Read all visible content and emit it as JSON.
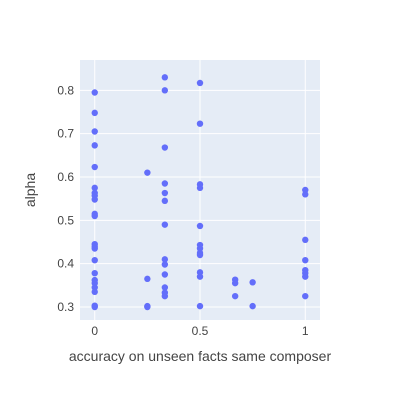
{
  "chart_data": {
    "type": "scatter",
    "xlabel": "accuracy on unseen facts same composer",
    "ylabel": "alpha",
    "xlim": [
      -0.07,
      1.07
    ],
    "ylim": [
      0.27,
      0.87
    ],
    "x_ticks": [
      0,
      0.5,
      1
    ],
    "x_tick_labels": [
      "0",
      "0.5",
      "1"
    ],
    "y_ticks": [
      0.3,
      0.4,
      0.5,
      0.6,
      0.7,
      0.8
    ],
    "y_tick_labels": [
      "0.3",
      "0.4",
      "0.5",
      "0.6",
      "0.7",
      "0.8"
    ],
    "grid": true,
    "colors": {
      "plot_background": "#e5ecf6",
      "grid": "#ffffff",
      "marker": "#636efa"
    },
    "points": [
      {
        "x": 0,
        "y": 0.795
      },
      {
        "x": 0,
        "y": 0.748
      },
      {
        "x": 0,
        "y": 0.705
      },
      {
        "x": 0,
        "y": 0.673
      },
      {
        "x": 0,
        "y": 0.623
      },
      {
        "x": 0,
        "y": 0.575
      },
      {
        "x": 0,
        "y": 0.563
      },
      {
        "x": 0,
        "y": 0.557
      },
      {
        "x": 0,
        "y": 0.548
      },
      {
        "x": 0,
        "y": 0.515
      },
      {
        "x": 0,
        "y": 0.51
      },
      {
        "x": 0,
        "y": 0.445
      },
      {
        "x": 0,
        "y": 0.44
      },
      {
        "x": 0,
        "y": 0.435
      },
      {
        "x": 0,
        "y": 0.408
      },
      {
        "x": 0,
        "y": 0.378
      },
      {
        "x": 0,
        "y": 0.362
      },
      {
        "x": 0,
        "y": 0.355
      },
      {
        "x": 0,
        "y": 0.345
      },
      {
        "x": 0,
        "y": 0.335
      },
      {
        "x": 0,
        "y": 0.303
      },
      {
        "x": 0,
        "y": 0.3
      },
      {
        "x": 0.25,
        "y": 0.61
      },
      {
        "x": 0.25,
        "y": 0.365
      },
      {
        "x": 0.25,
        "y": 0.302
      },
      {
        "x": 0.25,
        "y": 0.3
      },
      {
        "x": 0.333,
        "y": 0.83
      },
      {
        "x": 0.333,
        "y": 0.8
      },
      {
        "x": 0.333,
        "y": 0.668
      },
      {
        "x": 0.333,
        "y": 0.585
      },
      {
        "x": 0.333,
        "y": 0.563
      },
      {
        "x": 0.333,
        "y": 0.545
      },
      {
        "x": 0.333,
        "y": 0.49
      },
      {
        "x": 0.333,
        "y": 0.41
      },
      {
        "x": 0.333,
        "y": 0.398
      },
      {
        "x": 0.333,
        "y": 0.375
      },
      {
        "x": 0.333,
        "y": 0.345
      },
      {
        "x": 0.333,
        "y": 0.333
      },
      {
        "x": 0.333,
        "y": 0.325
      },
      {
        "x": 0.5,
        "y": 0.817
      },
      {
        "x": 0.5,
        "y": 0.723
      },
      {
        "x": 0.5,
        "y": 0.583
      },
      {
        "x": 0.5,
        "y": 0.575
      },
      {
        "x": 0.5,
        "y": 0.487
      },
      {
        "x": 0.5,
        "y": 0.443
      },
      {
        "x": 0.5,
        "y": 0.435
      },
      {
        "x": 0.5,
        "y": 0.425
      },
      {
        "x": 0.5,
        "y": 0.42
      },
      {
        "x": 0.5,
        "y": 0.38
      },
      {
        "x": 0.5,
        "y": 0.37
      },
      {
        "x": 0.5,
        "y": 0.302
      },
      {
        "x": 0.667,
        "y": 0.363
      },
      {
        "x": 0.667,
        "y": 0.355
      },
      {
        "x": 0.667,
        "y": 0.325
      },
      {
        "x": 0.75,
        "y": 0.357
      },
      {
        "x": 0.75,
        "y": 0.302
      },
      {
        "x": 1,
        "y": 0.57
      },
      {
        "x": 1,
        "y": 0.56
      },
      {
        "x": 1,
        "y": 0.455
      },
      {
        "x": 1,
        "y": 0.408
      },
      {
        "x": 1,
        "y": 0.385
      },
      {
        "x": 1,
        "y": 0.378
      },
      {
        "x": 1,
        "y": 0.37
      },
      {
        "x": 1,
        "y": 0.325
      }
    ]
  }
}
